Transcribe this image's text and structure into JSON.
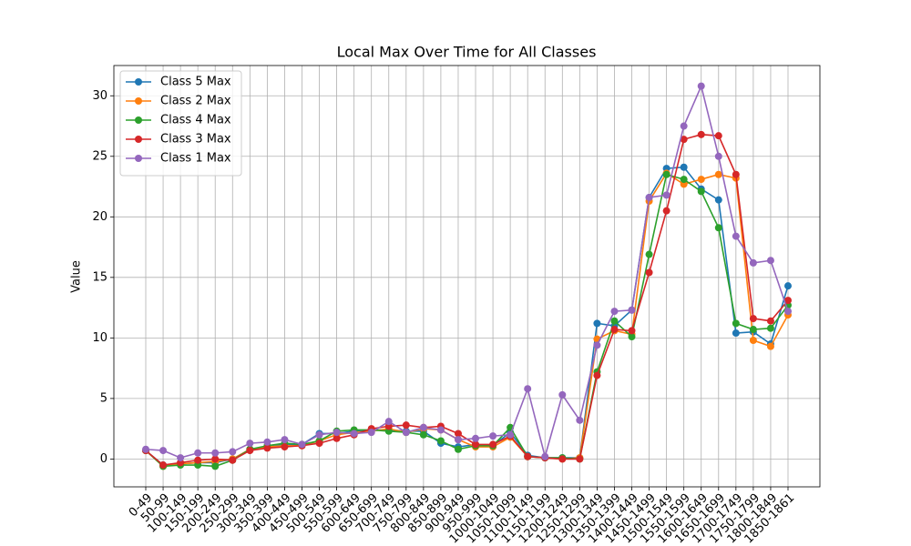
{
  "chart_data": {
    "type": "line",
    "title": "Local Max Over Time for All Classes",
    "y_label": "Value",
    "categories": [
      "0-49",
      "50-99",
      "100-149",
      "150-199",
      "200-249",
      "250-299",
      "300-349",
      "350-399",
      "400-449",
      "450-499",
      "500-549",
      "550-599",
      "600-649",
      "650-699",
      "700-749",
      "750-799",
      "800-849",
      "850-899",
      "900-949",
      "950-999",
      "1000-1049",
      "1050-1099",
      "1100-1149",
      "1150-1199",
      "1200-1249",
      "1250-1299",
      "1300-1349",
      "1350-1399",
      "1400-1449",
      "1450-1499",
      "1500-1549",
      "1550-1599",
      "1600-1649",
      "1650-1699",
      "1700-1749",
      "1750-1799",
      "1800-1849",
      "1850-1861"
    ],
    "series": [
      {
        "name": "Class 5 Max",
        "color": "#1f77b4",
        "values": [
          0.7,
          -0.5,
          -0.4,
          -0.3,
          -0.3,
          0.0,
          0.8,
          1.0,
          1.2,
          1.2,
          2.1,
          2.1,
          2.3,
          2.4,
          2.4,
          2.3,
          2.3,
          1.3,
          1.0,
          1.2,
          1.1,
          2.2,
          0.3,
          0.1,
          0.1,
          0.1,
          11.2,
          11.0,
          12.3,
          21.6,
          24.0,
          24.1,
          22.3,
          21.4,
          10.4,
          10.5,
          9.5,
          14.3
        ]
      },
      {
        "name": "Class 2 Max",
        "color": "#ff7f0e",
        "values": [
          0.7,
          -0.6,
          -0.4,
          -0.3,
          -0.2,
          0.0,
          0.8,
          1.0,
          1.1,
          1.1,
          1.5,
          2.0,
          2.2,
          2.3,
          2.5,
          2.2,
          2.5,
          2.4,
          1.6,
          1.0,
          1.0,
          1.8,
          0.2,
          0.1,
          0.0,
          0.1,
          9.9,
          10.6,
          10.3,
          21.3,
          23.6,
          22.7,
          23.1,
          23.5,
          23.2,
          9.8,
          9.3,
          11.9
        ]
      },
      {
        "name": "Class 4 Max",
        "color": "#2ca02c",
        "values": [
          0.7,
          -0.6,
          -0.5,
          -0.5,
          -0.6,
          -0.1,
          0.8,
          1.1,
          1.3,
          1.2,
          1.5,
          2.3,
          2.4,
          2.4,
          2.3,
          2.2,
          2.0,
          1.5,
          0.8,
          1.1,
          1.1,
          2.6,
          0.2,
          0.1,
          0.1,
          0.0,
          7.2,
          11.4,
          10.1,
          16.9,
          23.5,
          23.1,
          22.1,
          19.1,
          11.2,
          10.7,
          10.8,
          12.7
        ]
      },
      {
        "name": "Class 3 Max",
        "color": "#d62728",
        "values": [
          0.7,
          -0.5,
          -0.3,
          -0.1,
          0.0,
          -0.1,
          0.7,
          0.9,
          1.0,
          1.1,
          1.3,
          1.7,
          2.0,
          2.5,
          2.7,
          2.8,
          2.6,
          2.7,
          2.1,
          1.2,
          1.2,
          1.9,
          0.2,
          0.1,
          0.0,
          0.0,
          6.9,
          10.7,
          10.6,
          15.4,
          20.5,
          26.4,
          26.8,
          26.7,
          23.5,
          11.6,
          11.4,
          13.1
        ]
      },
      {
        "name": "Class 1 Max",
        "color": "#9467bd",
        "values": [
          0.8,
          0.7,
          0.1,
          0.5,
          0.5,
          0.6,
          1.3,
          1.4,
          1.6,
          1.2,
          2.0,
          2.2,
          2.1,
          2.2,
          3.1,
          2.2,
          2.6,
          2.4,
          1.6,
          1.7,
          1.9,
          2.0,
          5.8,
          0.2,
          5.3,
          3.2,
          9.4,
          12.2,
          12.3,
          21.6,
          21.8,
          27.5,
          30.8,
          25.0,
          18.4,
          16.2,
          16.4,
          12.2
        ]
      }
    ],
    "ylim": [
      -2.3,
      32.5
    ],
    "yticks": [
      0,
      5,
      10,
      15,
      20,
      25,
      30
    ],
    "grid": true,
    "legend": "upper left"
  }
}
